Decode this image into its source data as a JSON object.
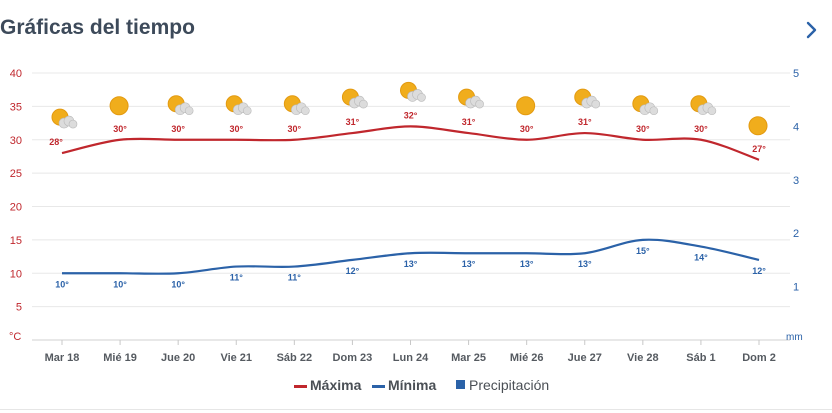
{
  "header": {
    "title": "Gráficas del tiempo",
    "next_icon": "chevron-right-icon"
  },
  "chart_data": {
    "type": "line",
    "categories": [
      "Mar 18",
      "Mié 19",
      "Jue 20",
      "Vie 21",
      "Sáb 22",
      "Dom 23",
      "Lun 24",
      "Mar 25",
      "Mié 26",
      "Jue 27",
      "Vie 28",
      "Sáb 1",
      "Dom 2"
    ],
    "series": [
      {
        "name": "Máxima",
        "color": "#c0272d",
        "values": [
          28,
          30,
          30,
          30,
          30,
          31,
          32,
          31,
          30,
          31,
          30,
          30,
          27
        ],
        "labels": [
          "28°",
          "30°",
          "30°",
          "30°",
          "30°",
          "31°",
          "32°",
          "31°",
          "30°",
          "31°",
          "30°",
          "30°",
          "27°"
        ]
      },
      {
        "name": "Mínima",
        "color": "#2b62a8",
        "values": [
          10,
          10,
          10,
          11,
          11,
          12,
          13,
          13,
          13,
          13,
          15,
          14,
          12
        ],
        "labels": [
          "10°",
          "10°",
          "10°",
          "11°",
          "11°",
          "12°",
          "13°",
          "13°",
          "13°",
          "13°",
          "15°",
          "14°",
          "12°"
        ]
      }
    ],
    "precipitation": {
      "name": "Precipitación",
      "color": "#2b62a8",
      "values": [
        0,
        0,
        0,
        0,
        0,
        0,
        0,
        0,
        0,
        0,
        0,
        0,
        0
      ]
    },
    "weather_icons": [
      "sun-cloud-icon",
      "sun-icon",
      "sun-cloud-icon",
      "sun-cloud-icon",
      "sun-cloud-icon",
      "sun-cloud-icon",
      "sun-cloud-icon",
      "sun-cloud-icon",
      "sun-icon",
      "sun-cloud-icon",
      "sun-cloud-icon",
      "sun-cloud-icon",
      "sun-icon"
    ],
    "y_left": {
      "unit": "°C",
      "ticks": [
        5,
        10,
        15,
        20,
        25,
        30,
        35,
        40
      ],
      "ylim": [
        0,
        40
      ]
    },
    "y_right": {
      "unit": "mm",
      "ticks": [
        1,
        2,
        3,
        4,
        5
      ],
      "ylim": [
        0,
        5
      ]
    },
    "grid": true,
    "legend": {
      "position": "bottom",
      "items": [
        "Máxima",
        "Mínima",
        "Precipitación"
      ]
    },
    "colors": {
      "left_axis": "#c0272d",
      "right_axis": "#2b62a8",
      "sun": "#f0ad1c",
      "cloud": "#dcdcdc"
    }
  }
}
